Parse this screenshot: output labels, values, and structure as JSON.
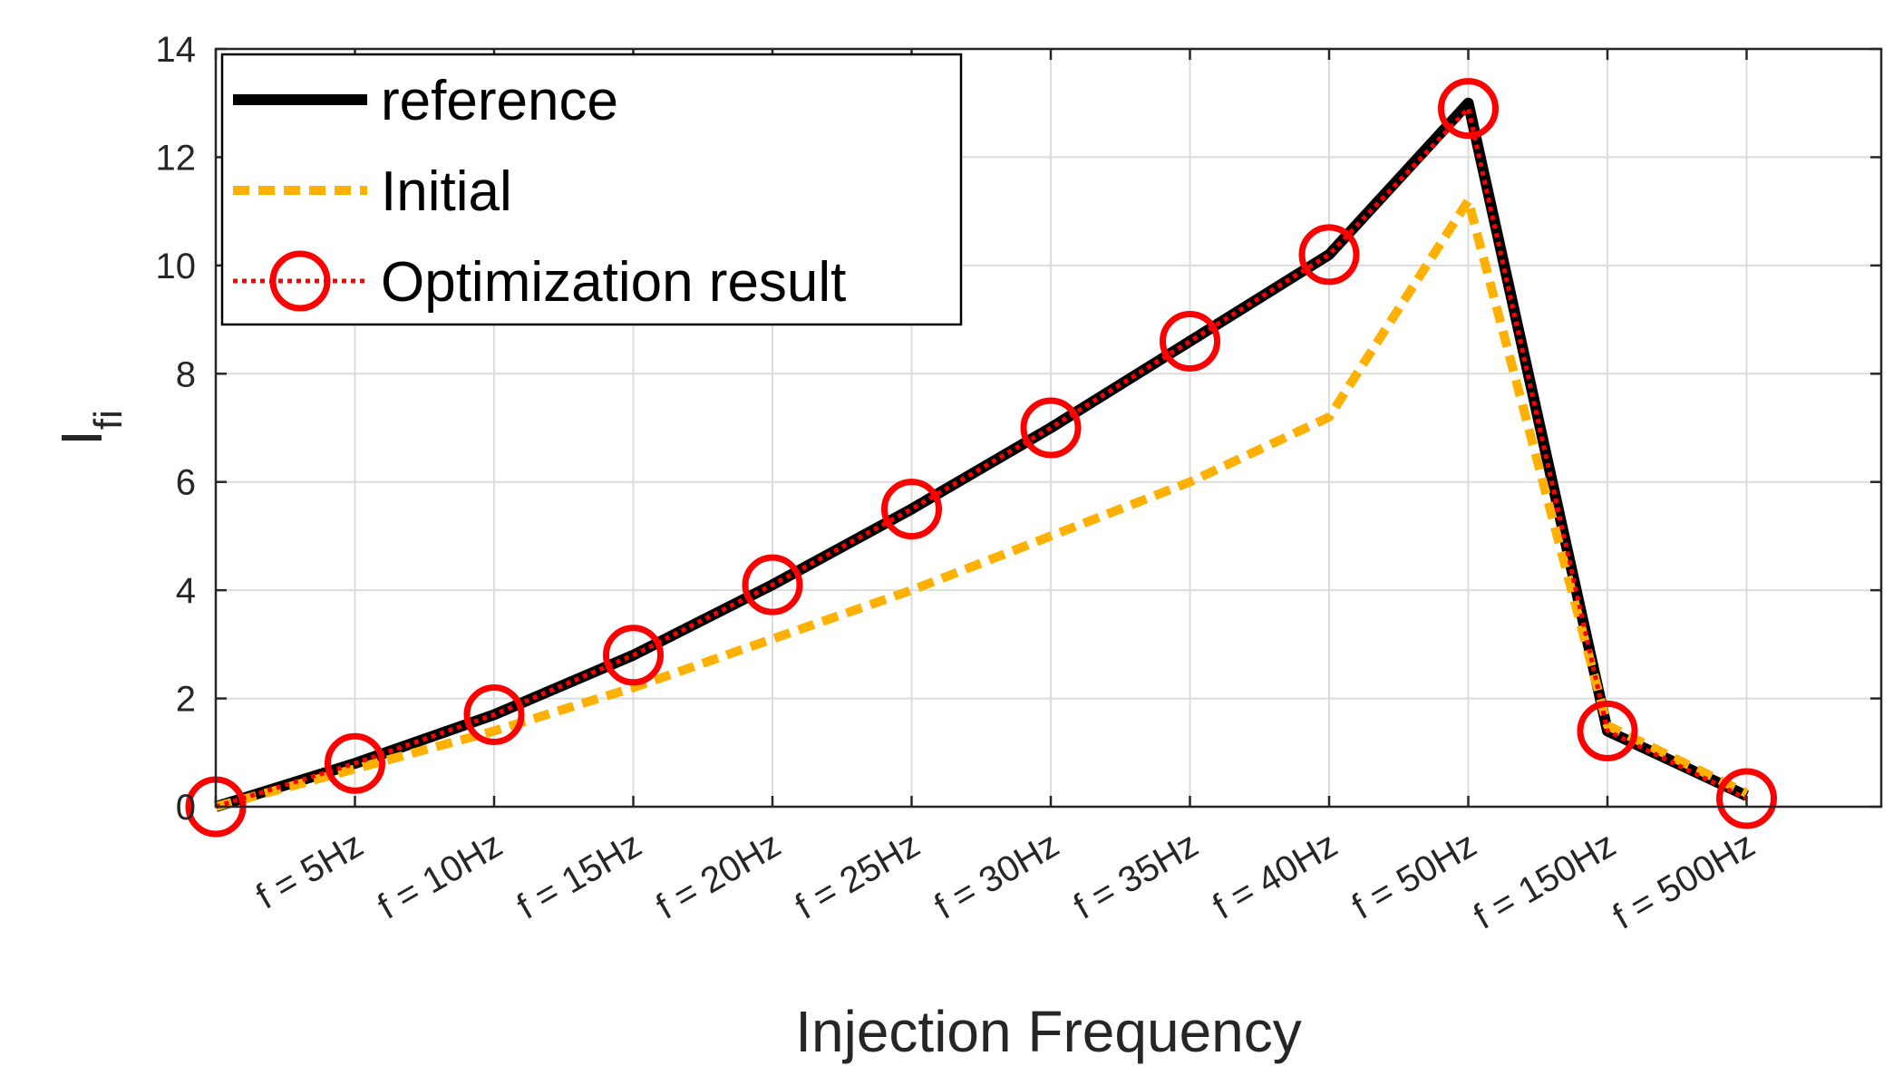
{
  "chart_data": {
    "type": "line",
    "title": "",
    "xlabel": "Injection Frequency",
    "ylabel": "I",
    "ylabel_subscript": "fi",
    "categories": [
      "",
      "f = 5Hz",
      "f = 10Hz",
      "f = 15Hz",
      "f = 20Hz",
      "f = 25Hz",
      "f = 30Hz",
      "f = 35Hz",
      "f = 40Hz",
      "f = 50Hz",
      "f = 150Hz",
      "f = 500Hz"
    ],
    "yticks": [
      "0",
      "2",
      "4",
      "6",
      "8",
      "10",
      "12",
      "14"
    ],
    "ylim": [
      0,
      14
    ],
    "grid": true,
    "legend_position": "top-left",
    "series": [
      {
        "name": "reference",
        "style": "solid",
        "color": "#000000",
        "values": [
          0.0,
          0.8,
          1.7,
          2.8,
          4.1,
          5.5,
          7.0,
          8.6,
          10.2,
          13.0,
          1.4,
          0.2
        ]
      },
      {
        "name": "Initial",
        "style": "dashed",
        "color": "#FFB000",
        "values": [
          0.0,
          0.7,
          1.4,
          2.2,
          3.1,
          4.0,
          5.0,
          6.0,
          7.2,
          11.2,
          1.5,
          0.25
        ]
      },
      {
        "name": "Optimization result",
        "style": "dotted-circles",
        "color": "#FF0000",
        "values": [
          0.0,
          0.8,
          1.7,
          2.8,
          4.1,
          5.5,
          7.0,
          8.6,
          10.2,
          12.9,
          1.4,
          0.15
        ]
      }
    ]
  }
}
